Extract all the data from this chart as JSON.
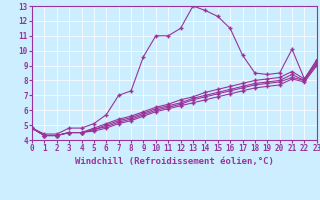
{
  "xlabel": "Windchill (Refroidissement éolien,°C)",
  "bg_color": "#cceeff",
  "line_color": "#993399",
  "marker": "+",
  "xlim": [
    0,
    23
  ],
  "ylim": [
    4,
    13
  ],
  "xticks": [
    0,
    1,
    2,
    3,
    4,
    5,
    6,
    7,
    8,
    9,
    10,
    11,
    12,
    13,
    14,
    15,
    16,
    17,
    18,
    19,
    20,
    21,
    22,
    23
  ],
  "yticks": [
    4,
    5,
    6,
    7,
    8,
    9,
    10,
    11,
    12,
    13
  ],
  "lines": [
    {
      "x": [
        0,
        1,
        2,
        3,
        4,
        5,
        6,
        7,
        8,
        9,
        10,
        11,
        12,
        13,
        14,
        15,
        16,
        17,
        18,
        19,
        20,
        21,
        22,
        23
      ],
      "y": [
        4.8,
        4.4,
        4.4,
        4.8,
        4.8,
        5.1,
        5.7,
        7.0,
        7.3,
        9.6,
        11.0,
        11.0,
        11.5,
        13.0,
        12.7,
        12.3,
        11.5,
        9.7,
        8.5,
        8.4,
        8.5,
        10.1,
        8.1,
        9.4
      ]
    },
    {
      "x": [
        0,
        1,
        2,
        3,
        4,
        5,
        6,
        7,
        8,
        9,
        10,
        11,
        12,
        13,
        14,
        15,
        16,
        17,
        18,
        19,
        20,
        21,
        22,
        23
      ],
      "y": [
        4.8,
        4.3,
        4.3,
        4.5,
        4.5,
        4.8,
        5.1,
        5.4,
        5.6,
        5.9,
        6.2,
        6.4,
        6.7,
        6.9,
        7.2,
        7.4,
        7.6,
        7.8,
        8.0,
        8.1,
        8.2,
        8.6,
        8.1,
        9.3
      ]
    },
    {
      "x": [
        0,
        1,
        2,
        3,
        4,
        5,
        6,
        7,
        8,
        9,
        10,
        11,
        12,
        13,
        14,
        15,
        16,
        17,
        18,
        19,
        20,
        21,
        22,
        23
      ],
      "y": [
        4.8,
        4.3,
        4.3,
        4.5,
        4.5,
        4.7,
        5.0,
        5.3,
        5.5,
        5.8,
        6.1,
        6.3,
        6.5,
        6.8,
        7.0,
        7.2,
        7.4,
        7.6,
        7.8,
        7.9,
        8.0,
        8.4,
        8.0,
        9.2
      ]
    },
    {
      "x": [
        0,
        1,
        2,
        3,
        4,
        5,
        6,
        7,
        8,
        9,
        10,
        11,
        12,
        13,
        14,
        15,
        16,
        17,
        18,
        19,
        20,
        21,
        22,
        23
      ],
      "y": [
        4.8,
        4.3,
        4.3,
        4.5,
        4.5,
        4.7,
        4.9,
        5.2,
        5.4,
        5.7,
        6.0,
        6.2,
        6.4,
        6.7,
        6.9,
        7.1,
        7.3,
        7.5,
        7.7,
        7.8,
        7.9,
        8.2,
        8.0,
        9.1
      ]
    },
    {
      "x": [
        0,
        1,
        2,
        3,
        4,
        5,
        6,
        7,
        8,
        9,
        10,
        11,
        12,
        13,
        14,
        15,
        16,
        17,
        18,
        19,
        20,
        21,
        22,
        23
      ],
      "y": [
        4.8,
        4.3,
        4.3,
        4.5,
        4.5,
        4.6,
        4.8,
        5.1,
        5.3,
        5.6,
        5.9,
        6.1,
        6.3,
        6.5,
        6.7,
        6.9,
        7.1,
        7.3,
        7.5,
        7.6,
        7.7,
        8.1,
        7.9,
        9.0
      ]
    }
  ]
}
